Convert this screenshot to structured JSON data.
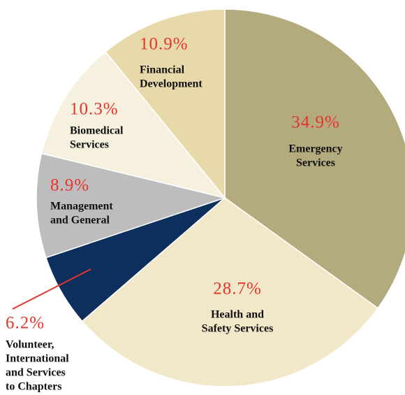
{
  "chart_data": {
    "type": "pie",
    "categories": [
      [
        "Emergency",
        "Services"
      ],
      [
        "Health and",
        "Safety Services"
      ],
      [
        "Volunteer,",
        "International",
        "and Services",
        "to Chapters"
      ],
      [
        "Management",
        "and General"
      ],
      [
        "Biomedical",
        "Services"
      ],
      [
        "Financial",
        "Development"
      ]
    ],
    "values": [
      34.9,
      28.7,
      6.2,
      8.9,
      10.3,
      10.9
    ],
    "value_labels": [
      "34.9%",
      "28.7%",
      "6.2%",
      "8.9%",
      "10.3%",
      "10.9%"
    ],
    "colors": [
      "#b3aa7e",
      "#f1e7c9",
      "#0c2f5d",
      "#bdbdbd",
      "#f6f0df",
      "#e8d9aa"
    ]
  }
}
